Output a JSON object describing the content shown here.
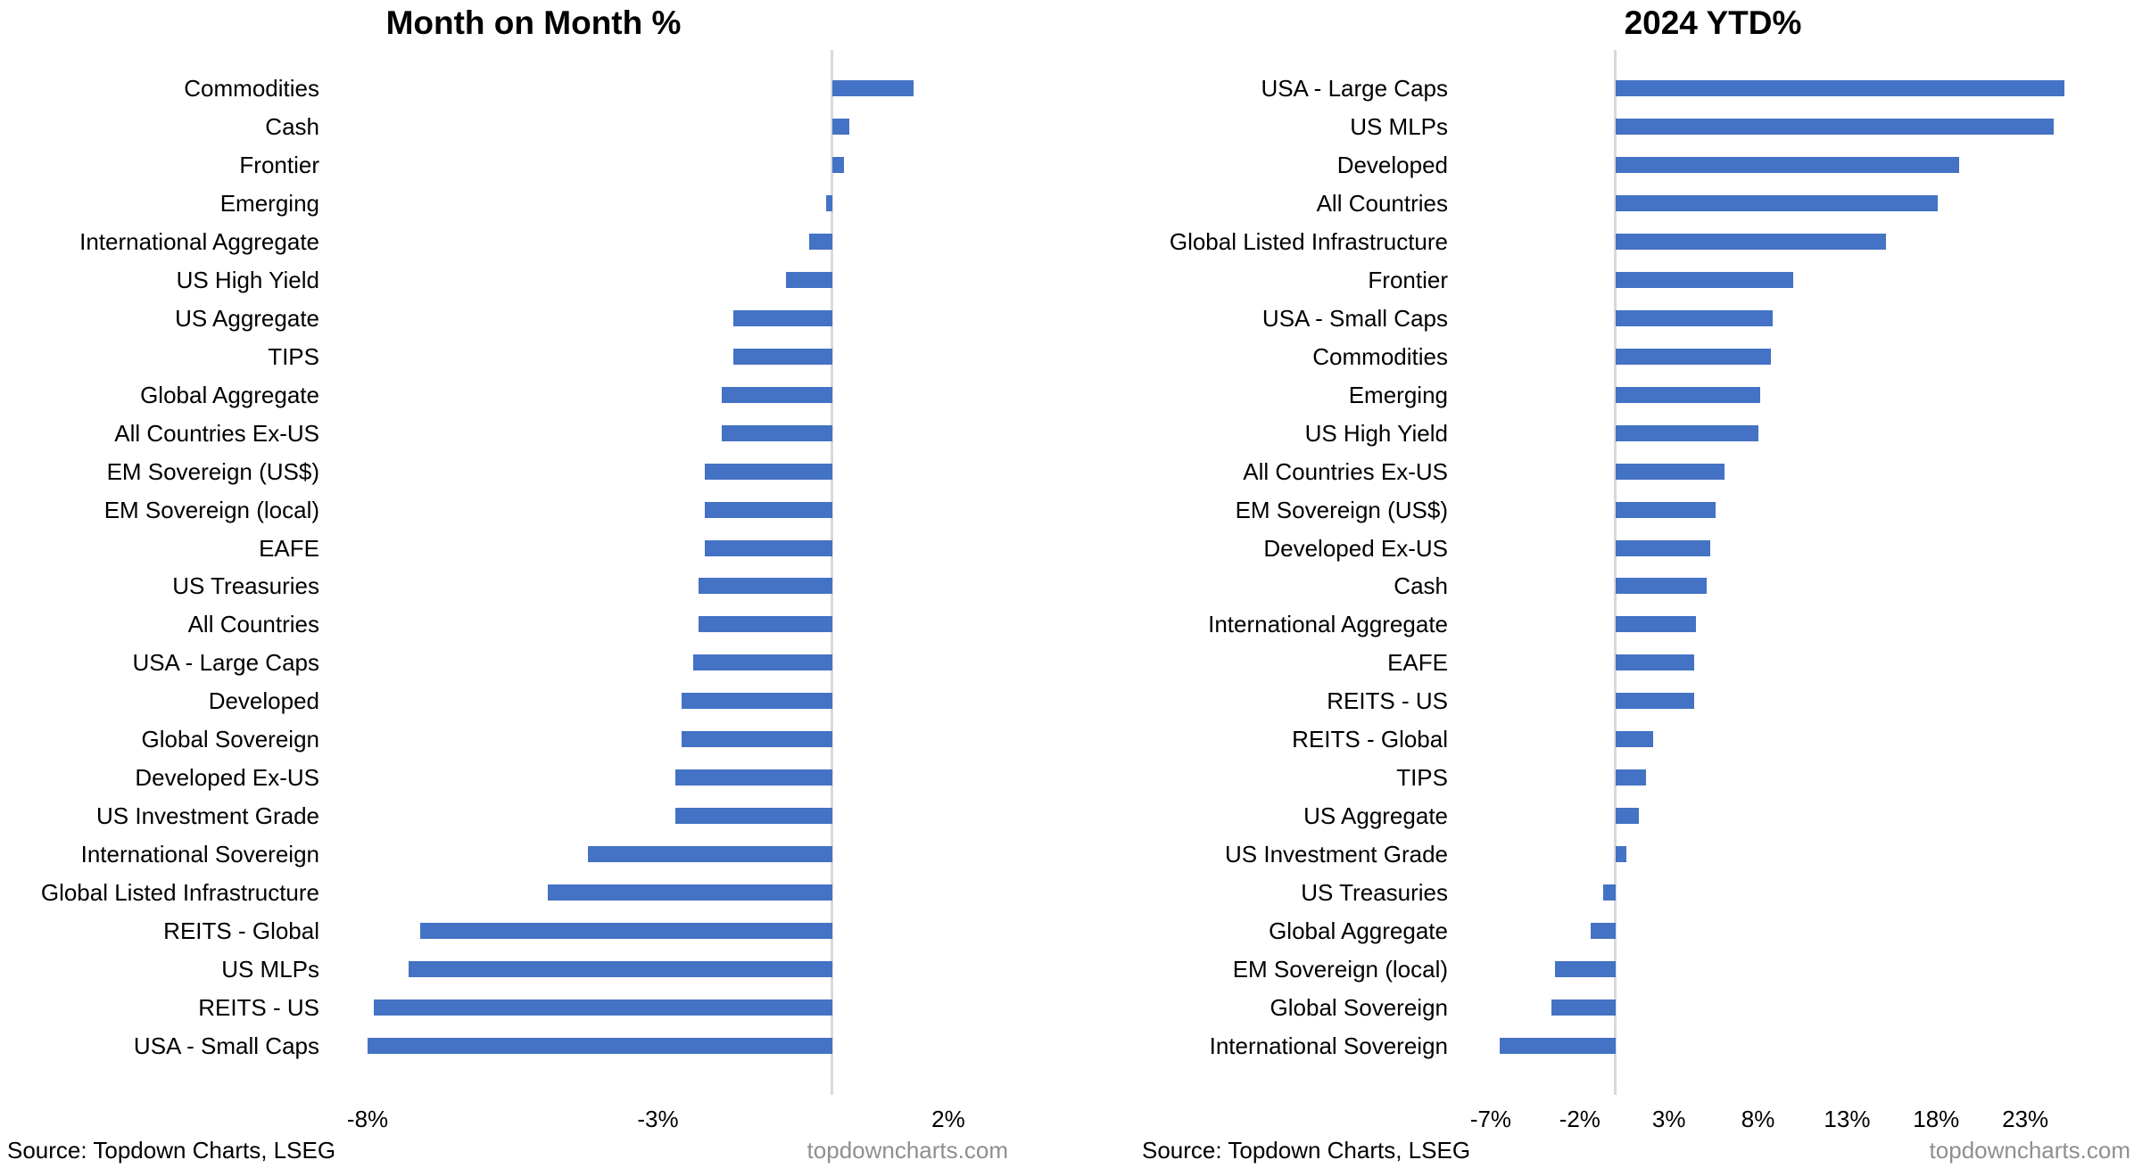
{
  "page": {
    "background": "#ffffff"
  },
  "footers": [
    {
      "source": "Source: Topdown Charts, LSEG",
      "site": "topdowncharts.com"
    },
    {
      "source": "Source: Topdown Charts, LSEG",
      "site": "topdowncharts.com"
    }
  ],
  "chart_data": [
    {
      "type": "bar",
      "orientation": "horizontal",
      "title": "Month on Month %",
      "unit": "%",
      "sorted": "descending",
      "grid": false,
      "legend": null,
      "categories": [
        "Commodities",
        "Cash",
        "Frontier",
        "Emerging",
        "International Aggregate",
        "US High Yield",
        "US Aggregate",
        "TIPS",
        "Global Aggregate",
        "All Countries Ex-US",
        "EM Sovereign (US$)",
        "EM Sovereign (local)",
        "EAFE",
        "US Treasuries",
        "All Countries",
        "USA - Large Caps",
        "Developed",
        "Global Sovereign",
        "Developed Ex-US",
        "US Investment Grade",
        "International Sovereign",
        "Global Listed Infrastructure",
        "REITS - Global",
        "US MLPs",
        "REITS - US",
        "USA - Small Caps"
      ],
      "values": [
        1.4,
        0.3,
        0.2,
        -0.1,
        -0.4,
        -0.8,
        -1.7,
        -1.7,
        -1.9,
        -1.9,
        -2.2,
        -2.2,
        -2.2,
        -2.3,
        -2.3,
        -2.4,
        -2.6,
        -2.6,
        -2.7,
        -2.7,
        -4.2,
        -4.9,
        -7.1,
        -7.3,
        -7.9,
        -8.0
      ],
      "xlim": [
        -8.6,
        2.8
      ],
      "ticks": [
        -8,
        -3,
        2
      ],
      "tick_labels": [
        "-8%",
        "-3%",
        "2%"
      ],
      "bar_color": "#4472C4",
      "axis_line_color": "#d9d9d9"
    },
    {
      "type": "bar",
      "orientation": "horizontal",
      "title": "2024 YTD%",
      "unit": "%",
      "sorted": "descending",
      "grid": false,
      "legend": null,
      "categories": [
        "USA - Large Caps",
        "US MLPs",
        "Developed",
        "All Countries",
        "Global Listed Infrastructure",
        "Frontier",
        "USA - Small Caps",
        "Commodities",
        "Emerging",
        "US High Yield",
        "All Countries Ex-US",
        "EM Sovereign (US$)",
        "Developed Ex-US",
        "Cash",
        "International Aggregate",
        "EAFE",
        "REITS - US",
        "REITS - Global",
        "TIPS",
        "US Aggregate",
        "US Investment Grade",
        "US Treasuries",
        "Global Aggregate",
        "EM Sovereign (local)",
        "Global Sovereign",
        "International Sovereign"
      ],
      "values": [
        25.2,
        24.6,
        19.3,
        18.1,
        15.2,
        10.0,
        8.8,
        8.7,
        8.1,
        8.0,
        6.1,
        5.6,
        5.3,
        5.1,
        4.5,
        4.4,
        4.4,
        2.1,
        1.7,
        1.3,
        0.6,
        -0.7,
        -1.4,
        -3.4,
        -3.6,
        -6.5
      ],
      "xlim": [
        -9.0,
        29.1
      ],
      "ticks": [
        -7,
        -2,
        3,
        8,
        13,
        18,
        23
      ],
      "tick_labels": [
        "-7%",
        "-2%",
        "3%",
        "8%",
        "13%",
        "18%",
        "23%"
      ],
      "bar_color": "#4472C4",
      "axis_line_color": "#d9d9d9"
    }
  ]
}
